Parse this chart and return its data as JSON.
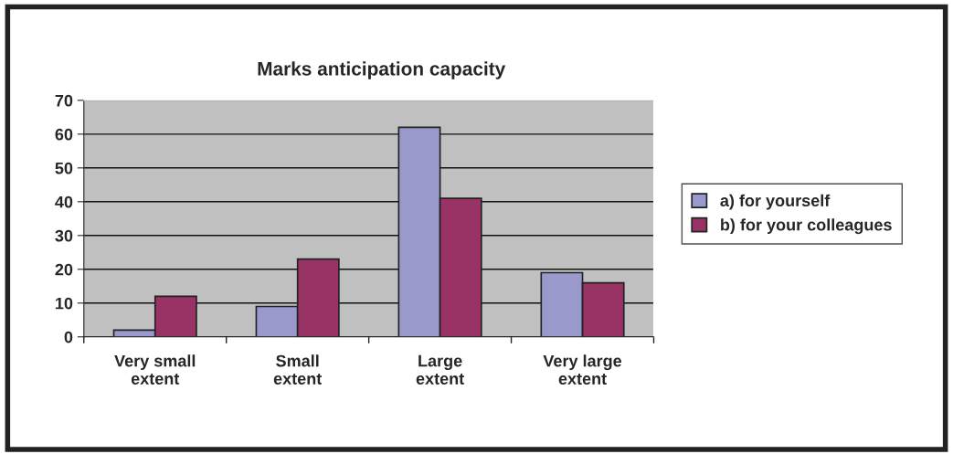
{
  "chart_data": {
    "type": "bar",
    "title": "Marks anticipation capacity",
    "categories": [
      "Very small\nextent",
      "Small\nextent",
      "Large\nextent",
      "Very large\nextent"
    ],
    "series": [
      {
        "name": "a) for yourself",
        "color": "#9999cc",
        "values": [
          2,
          9,
          62,
          19
        ]
      },
      {
        "name": "b) for your colleagues",
        "color": "#993366",
        "values": [
          12,
          23,
          41,
          16
        ]
      }
    ],
    "ylim": [
      0,
      70
    ],
    "yticks": [
      0,
      10,
      20,
      30,
      40,
      50,
      60,
      70
    ],
    "grid": "y",
    "legend": "right"
  }
}
